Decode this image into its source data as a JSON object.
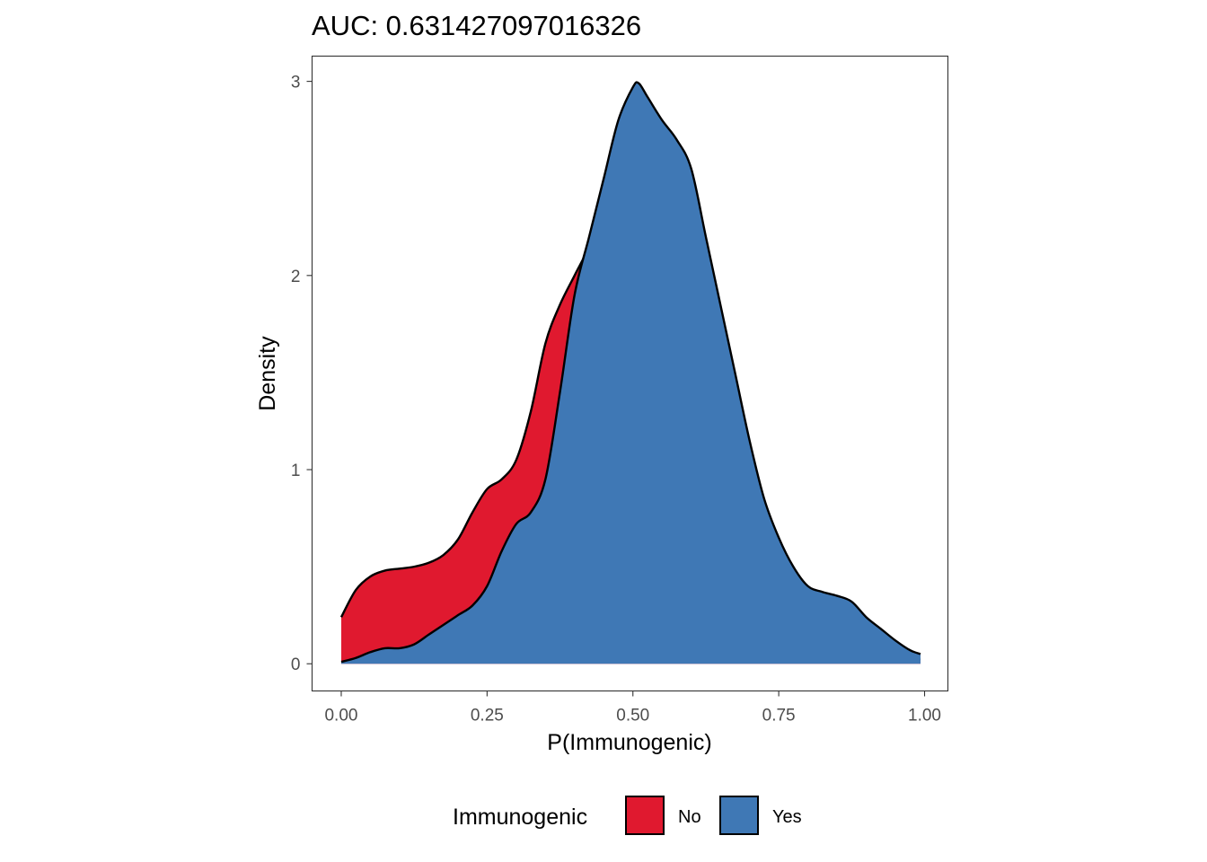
{
  "chart_data": {
    "type": "area",
    "title": "AUC: 0.631427097016326",
    "xlabel": "P(Immunogenic)",
    "ylabel": "Density",
    "xlim": [
      -0.05,
      1.04
    ],
    "ylim": [
      -0.14,
      3.13
    ],
    "x_ticks": [
      0,
      0.25,
      0.5,
      0.75,
      1
    ],
    "x_tick_labels": [
      "0.00",
      "0.25",
      "0.50",
      "0.75",
      "1.00"
    ],
    "y_ticks": [
      0,
      1,
      2,
      3
    ],
    "y_tick_labels": [
      "0",
      "1",
      "2",
      "3"
    ],
    "grid": false,
    "legend": {
      "title": "Immunogenic",
      "position": "bottom",
      "entries": [
        {
          "label": "No",
          "color": "#E0192F"
        },
        {
          "label": "Yes",
          "color": "#3F78B5"
        }
      ]
    },
    "series": [
      {
        "name": "No",
        "color": "#E0192F",
        "opacity": 1,
        "x": [
          0,
          0.025,
          0.05,
          0.075,
          0.1,
          0.125,
          0.15,
          0.175,
          0.2,
          0.225,
          0.25,
          0.275,
          0.3,
          0.325,
          0.35,
          0.375,
          0.4,
          0.425,
          0.45,
          0.475,
          0.5,
          0.525,
          0.55,
          0.575,
          0.6,
          0.625,
          0.65,
          0.675,
          0.7,
          0.725,
          0.75,
          0.775,
          0.8,
          0.825,
          0.85,
          0.875,
          0.9,
          0.925,
          0.95,
          0.975,
          0.993
        ],
        "y": [
          0.24,
          0.38,
          0.45,
          0.48,
          0.49,
          0.5,
          0.52,
          0.56,
          0.64,
          0.78,
          0.9,
          0.95,
          1.05,
          1.3,
          1.65,
          1.85,
          2.0,
          2.15,
          2.35,
          2.48,
          2.52,
          2.5,
          2.38,
          2.1,
          1.65,
          1.2,
          0.9,
          0.72,
          0.58,
          0.48,
          0.4,
          0.3,
          0.18,
          0.1,
          0.08,
          0.06,
          0.05,
          0.05,
          0.04,
          0.03,
          0.02
        ]
      },
      {
        "name": "Yes",
        "color": "#3F78B5",
        "opacity": 1,
        "x": [
          0,
          0.025,
          0.05,
          0.075,
          0.1,
          0.125,
          0.15,
          0.175,
          0.2,
          0.225,
          0.25,
          0.275,
          0.3,
          0.325,
          0.35,
          0.375,
          0.4,
          0.425,
          0.45,
          0.475,
          0.5,
          0.51,
          0.525,
          0.55,
          0.575,
          0.6,
          0.625,
          0.65,
          0.675,
          0.7,
          0.725,
          0.75,
          0.775,
          0.8,
          0.825,
          0.85,
          0.875,
          0.9,
          0.925,
          0.95,
          0.975,
          0.993
        ],
        "y": [
          0.01,
          0.03,
          0.06,
          0.08,
          0.08,
          0.1,
          0.15,
          0.2,
          0.25,
          0.3,
          0.4,
          0.58,
          0.72,
          0.78,
          0.95,
          1.4,
          1.9,
          2.2,
          2.5,
          2.8,
          2.97,
          2.99,
          2.92,
          2.8,
          2.7,
          2.55,
          2.2,
          1.85,
          1.5,
          1.15,
          0.85,
          0.65,
          0.5,
          0.4,
          0.37,
          0.35,
          0.32,
          0.24,
          0.18,
          0.12,
          0.07,
          0.05
        ]
      }
    ]
  }
}
